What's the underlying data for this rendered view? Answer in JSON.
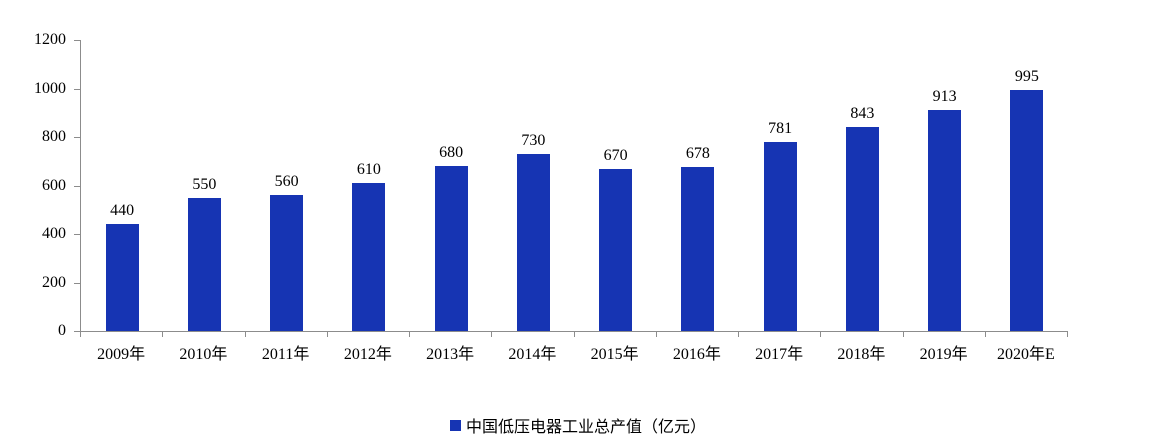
{
  "chart_data": {
    "type": "bar",
    "categories": [
      "2009年",
      "2010年",
      "2011年",
      "2012年",
      "2013年",
      "2014年",
      "2015年",
      "2016年",
      "2017年",
      "2018年",
      "2019年",
      "2020年E"
    ],
    "values": [
      440,
      550,
      560,
      610,
      680,
      730,
      670,
      678,
      781,
      843,
      913,
      995
    ],
    "title": "",
    "xlabel": "",
    "ylabel": "",
    "ylim": [
      0,
      1200
    ],
    "yticks": [
      0,
      200,
      400,
      600,
      800,
      1000,
      1200
    ],
    "grid": false,
    "legend": [
      "中国低压电器工业总产值（亿元）"
    ],
    "legend_position": "bottom",
    "data_labels_shown": true
  },
  "colors": {
    "bar": "#1634b3",
    "axis": "#8c8c8c",
    "text": "#000000"
  }
}
